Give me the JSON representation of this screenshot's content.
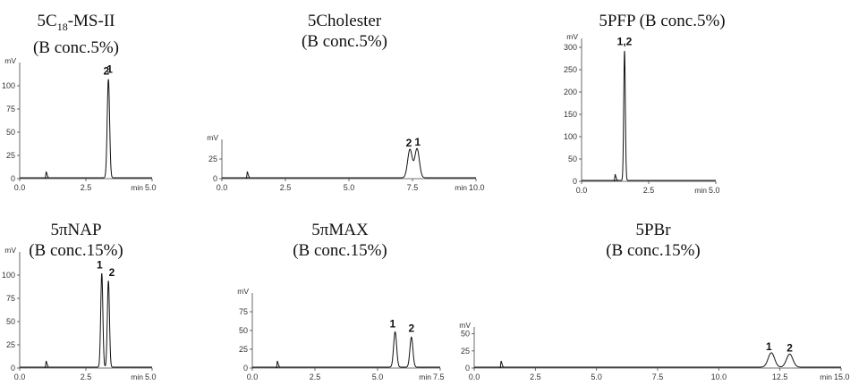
{
  "chart_data": [
    {
      "type": "line",
      "title_main": "5C",
      "title_sub": "18",
      "title_tail": "-MS-II",
      "subtitle": "(B conc.5%)",
      "ylabel": "mV",
      "xlabel": "min",
      "xlim": [
        0,
        5.0
      ],
      "ylim": [
        0,
        125
      ],
      "xticks": [
        "0.0",
        "2.5",
        "5.0"
      ],
      "yticks": [
        "0",
        "25",
        "50",
        "75",
        "100"
      ],
      "injection_time": 1.0,
      "peaks": [
        {
          "rt": 3.35,
          "height": 106,
          "width": 0.045
        }
      ],
      "peak_labels": [
        {
          "text": "2",
          "rt": 3.27,
          "height": 112
        },
        {
          "text": "1",
          "rt": 3.4,
          "height": 114
        }
      ]
    },
    {
      "type": "line",
      "title_main": "5Cholester",
      "subtitle": "(B conc.5%)",
      "ylabel": "mV",
      "xlabel": "min",
      "xlim": [
        0,
        10.0
      ],
      "ylim": [
        0,
        50
      ],
      "xticks": [
        "0.0",
        "2.5",
        "5.0",
        "7.5",
        "10.0"
      ],
      "yticks": [
        "0",
        "25"
      ],
      "injection_time": 1.0,
      "peaks": [
        {
          "rt": 7.4,
          "height": 36,
          "width": 0.09
        },
        {
          "rt": 7.68,
          "height": 37,
          "width": 0.09
        }
      ],
      "peak_labels": [
        {
          "text": "2",
          "rt": 7.36,
          "height": 41
        },
        {
          "text": "1",
          "rt": 7.7,
          "height": 42
        }
      ]
    },
    {
      "type": "line",
      "title_main": "5PFP (B conc.5%)",
      "subtitle": "",
      "ylabel": "mV",
      "xlabel": "min",
      "xlim": [
        0,
        5.0
      ],
      "ylim": [
        0,
        320
      ],
      "xticks": [
        "0.0",
        "2.5",
        "5.0"
      ],
      "yticks": [
        "0",
        "50",
        "100",
        "150",
        "200",
        "250",
        "300"
      ],
      "injection_time": 1.25,
      "peaks": [
        {
          "rt": 1.6,
          "height": 290,
          "width": 0.03
        }
      ],
      "peak_labels": [
        {
          "text": "1,2",
          "rt": 1.6,
          "height": 305
        }
      ]
    },
    {
      "type": "line",
      "title_main": "5πNAP",
      "subtitle": "(B conc.15%)",
      "ylabel": "mV",
      "xlabel": "min",
      "xlim": [
        0,
        5.0
      ],
      "ylim": [
        0,
        125
      ],
      "xticks": [
        "0.0",
        "2.5",
        "5.0"
      ],
      "yticks": [
        "0",
        "25",
        "50",
        "75",
        "100"
      ],
      "injection_time": 1.0,
      "peaks": [
        {
          "rt": 3.1,
          "height": 101,
          "width": 0.04
        },
        {
          "rt": 3.35,
          "height": 93,
          "width": 0.04
        }
      ],
      "peak_labels": [
        {
          "text": "1",
          "rt": 3.02,
          "height": 107
        },
        {
          "text": "2",
          "rt": 3.48,
          "height": 99
        }
      ]
    },
    {
      "type": "line",
      "title_main": "5πMAX",
      "subtitle": "(B conc.15%)",
      "ylabel": "mV",
      "xlabel": "min",
      "xlim": [
        0,
        7.5
      ],
      "ylim": [
        0,
        100
      ],
      "xticks": [
        "0.0",
        "2.5",
        "5.0",
        "7.5"
      ],
      "yticks": [
        "0",
        "25",
        "50",
        "75"
      ],
      "injection_time": 1.0,
      "peaks": [
        {
          "rt": 5.7,
          "height": 47,
          "width": 0.06
        },
        {
          "rt": 6.35,
          "height": 40,
          "width": 0.06
        }
      ],
      "peak_labels": [
        {
          "text": "1",
          "rt": 5.6,
          "height": 54
        },
        {
          "text": "2",
          "rt": 6.35,
          "height": 48
        }
      ]
    },
    {
      "type": "line",
      "title_main": "5PBr",
      "subtitle": "(B conc.15%)",
      "ylabel": "mV",
      "xlabel": "min",
      "xlim": [
        0,
        15.0
      ],
      "ylim": [
        0,
        60
      ],
      "xticks": [
        "0.0",
        "2.5",
        "5.0",
        "7.5",
        "10.0",
        "12.5",
        "15.0"
      ],
      "yticks": [
        "0",
        "25",
        "50"
      ],
      "injection_time": 1.1,
      "peaks": [
        {
          "rt": 12.15,
          "height": 21,
          "width": 0.13
        },
        {
          "rt": 12.9,
          "height": 19,
          "width": 0.13
        }
      ],
      "peak_labels": [
        {
          "text": "1",
          "rt": 12.05,
          "height": 26
        },
        {
          "text": "2",
          "rt": 12.9,
          "height": 24
        }
      ]
    }
  ]
}
